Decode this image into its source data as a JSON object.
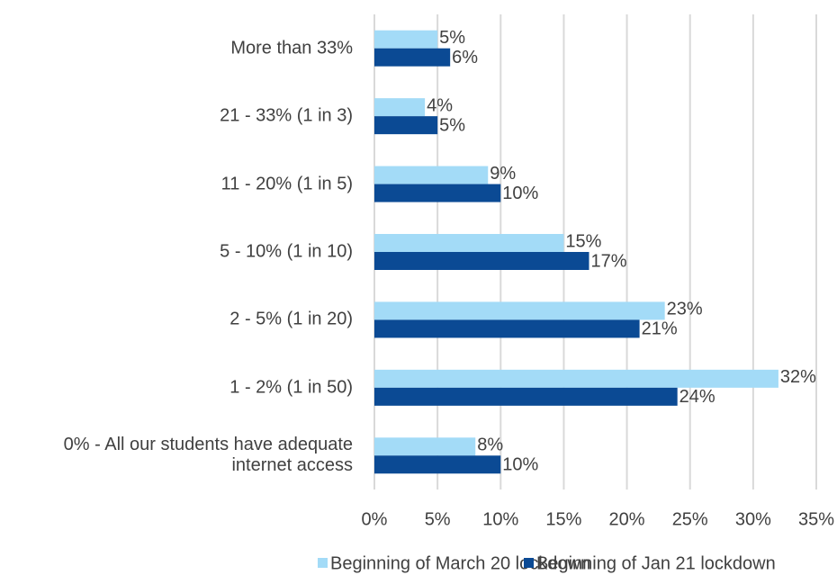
{
  "chart_data": {
    "type": "hbar",
    "categories": [
      "More than 33%",
      "21 - 33% (1 in 3)",
      "11 - 20% (1 in 5)",
      "5 - 10% (1 in 10)",
      "2 - 5% (1 in 20)",
      "1 - 2% (1 in 50)",
      "0% - All our students have adequate internet access"
    ],
    "series": [
      {
        "name": "Beginning of March 20 lockdown",
        "color": "#a3dbf7",
        "values": [
          5,
          4,
          9,
          15,
          23,
          32,
          8
        ],
        "value_labels": [
          "5%",
          "4%",
          "9%",
          "15%",
          "23%",
          "32%",
          "8%"
        ]
      },
      {
        "name": "Beginning of Jan 21 lockdown",
        "color": "#0b4a94",
        "values": [
          6,
          5,
          10,
          17,
          21,
          24,
          10
        ],
        "value_labels": [
          "6%",
          "5%",
          "10%",
          "17%",
          "21%",
          "24%",
          "10%"
        ]
      }
    ],
    "xlim": [
      0,
      35
    ],
    "xticks": [
      {
        "value": 0,
        "label": "0%"
      },
      {
        "value": 5,
        "label": "5%"
      },
      {
        "value": 10,
        "label": "10%"
      },
      {
        "value": 15,
        "label": "15%"
      },
      {
        "value": 20,
        "label": "20%"
      },
      {
        "value": 25,
        "label": "25%"
      },
      {
        "value": 30,
        "label": "30%"
      },
      {
        "value": 35,
        "label": "35%"
      }
    ],
    "grid": true,
    "legend": "bottom"
  }
}
